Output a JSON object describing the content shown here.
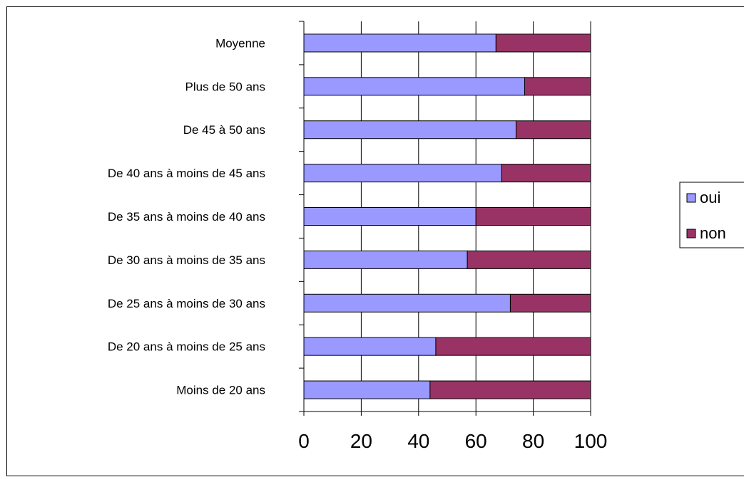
{
  "chart_data": {
    "type": "bar",
    "orientation": "horizontal",
    "stacked": true,
    "categories": [
      "Moyenne",
      "Plus de 50 ans",
      "De 45 à 50 ans",
      "De 40 ans à moins de 45 ans",
      "De 35 ans à moins de 40 ans",
      "De 30 ans à moins de 35 ans",
      "De 25 ans à moins de 30 ans",
      "De 20 ans à moins de 25 ans",
      "Moins de 20 ans"
    ],
    "series": [
      {
        "name": "oui",
        "color": "#9999ff",
        "values": [
          67,
          77,
          74,
          69,
          60,
          57,
          72,
          46,
          44
        ]
      },
      {
        "name": "non",
        "color": "#993366",
        "values": [
          33,
          23,
          26,
          31,
          40,
          43,
          28,
          54,
          56
        ]
      }
    ],
    "xlim": [
      0,
      100
    ],
    "xticks": [
      "0",
      "20",
      "40",
      "60",
      "80",
      "100"
    ],
    "title": "",
    "xlabel": "",
    "ylabel": "",
    "grid": "vertical",
    "legend_position": "right"
  }
}
